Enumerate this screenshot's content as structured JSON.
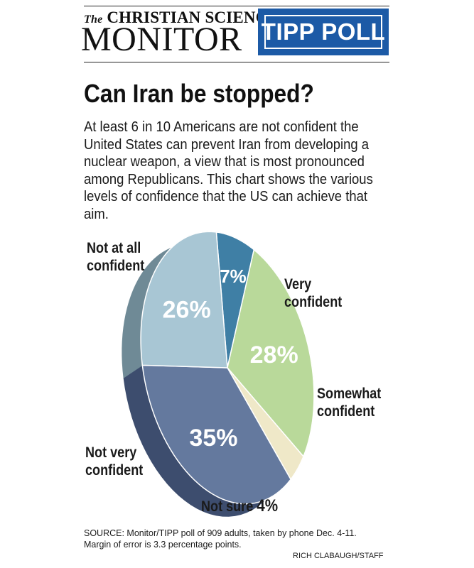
{
  "masthead": {
    "the": "The",
    "christian_science": "CHRISTIAN SCIENCE",
    "monitor": "MONITOR",
    "badge": "TIPP POLL"
  },
  "headline": "Can Iran be stopped?",
  "dek": "At least 6 in 10 Americans are not confident the United States can prevent Iran from developing a nuclear weapon, a view that is most pronounced among Republicans. This chart shows the various levels of confidence that the US can achieve that aim.",
  "labels": {
    "not_at_all_1": "Not at all",
    "not_at_all_2": "confident",
    "very_1": "Very",
    "very_2": "confident",
    "somewhat_1": "Somewhat",
    "somewhat_2": "confident",
    "not_very_1": "Not very",
    "not_very_2": "confident",
    "not_sure_text": "Not sure",
    "not_sure_value": "4%"
  },
  "source_line1": "SOURCE: Monitor/TIPP poll of 909 adults, taken by phone Dec. 4-11.",
  "source_line2": "Margin of error is 3.3 percentage points.",
  "credit": "RICH CLABAUGH/STAFF",
  "chart_data": {
    "type": "pie",
    "categories": [
      "Very confident",
      "Somewhat confident",
      "Not sure",
      "Not very confident",
      "Not at all confident"
    ],
    "values": [
      7,
      28,
      4,
      35,
      26
    ],
    "value_labels": [
      "7%",
      "28%",
      "",
      "35%",
      "26%"
    ],
    "colors": [
      "#3f7fa5",
      "#b9d99a",
      "#efe8c8",
      "#64799e",
      "#a8c6d4"
    ],
    "side_colors": [
      "#2c5c78",
      "#8fae72",
      "#bdb79a",
      "#3d4d6e",
      "#6f8a96"
    ],
    "style": "3d-perspective"
  }
}
